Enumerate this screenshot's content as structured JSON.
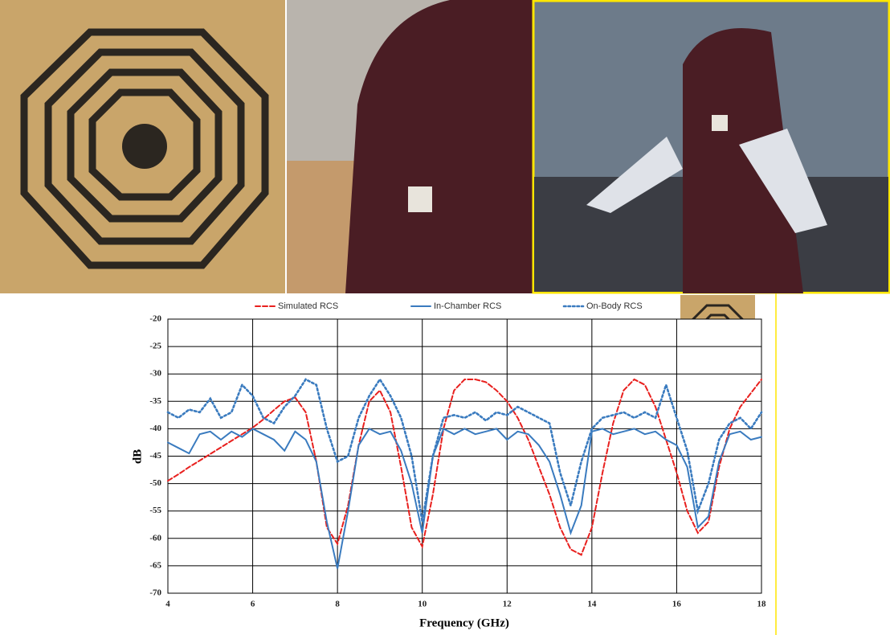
{
  "chart_data": {
    "type": "line",
    "x_label": "Frequency (GHz)",
    "y_label": "dB",
    "x": [
      4,
      4.25,
      4.5,
      4.75,
      5,
      5.25,
      5.5,
      5.75,
      6,
      6.25,
      6.5,
      6.75,
      7,
      7.25,
      7.5,
      7.75,
      8,
      8.25,
      8.5,
      8.75,
      9,
      9.25,
      9.5,
      9.75,
      10,
      10.25,
      10.5,
      10.75,
      11,
      11.25,
      11.5,
      11.75,
      12,
      12.25,
      12.5,
      12.75,
      13,
      13.25,
      13.5,
      13.75,
      14,
      14.25,
      14.5,
      14.75,
      15,
      15.25,
      15.5,
      15.75,
      16,
      16.25,
      16.5,
      16.75,
      17,
      17.25,
      17.5,
      17.75,
      18
    ],
    "series": [
      {
        "name": "Simulated RCS",
        "color": "#e8201e",
        "line_style": "dashed",
        "values": [
          -49.5,
          -48.3,
          -47,
          -45.8,
          -44.6,
          -43.4,
          -42.2,
          -41,
          -39.8,
          -38.3,
          -36.6,
          -35,
          -34.3,
          -37,
          -46,
          -58,
          -61,
          -54,
          -43,
          -35,
          -33,
          -37,
          -47,
          -58,
          -61.5,
          -52,
          -40,
          -33,
          -31,
          -31,
          -31.5,
          -33,
          -35,
          -38,
          -42,
          -47,
          -52,
          -58,
          -62,
          -63,
          -58,
          -48,
          -39,
          -33,
          -31,
          -32,
          -36,
          -42,
          -48,
          -55,
          -59,
          -57,
          -47,
          -40,
          -36,
          -33.5,
          -31
        ]
      },
      {
        "name": "In-Chamber RCS",
        "color": "#3a7bbf",
        "line_style": "solid",
        "values": [
          -42.5,
          -43.5,
          -44.5,
          -41,
          -40.5,
          -42,
          -40.5,
          -41.5,
          -40,
          -41,
          -42,
          -44,
          -40.5,
          -42,
          -46,
          -57,
          -65.5,
          -55,
          -43,
          -40,
          -41,
          -40.5,
          -44,
          -50,
          -59,
          -45,
          -40,
          -41,
          -40,
          -41,
          -40.5,
          -40,
          -42,
          -40.5,
          -41,
          -43,
          -46,
          -52,
          -59,
          -54,
          -40.5,
          -40,
          -41,
          -40.5,
          -40,
          -41,
          -40.5,
          -42,
          -43,
          -47,
          -58,
          -56,
          -46,
          -41,
          -40.5,
          -42,
          -41.5
        ]
      },
      {
        "name": "On-Body RCS",
        "color": "#3a7bbf",
        "line_style": "dotted",
        "values": [
          -37,
          -38,
          -36.5,
          -37,
          -34.5,
          -38,
          -37,
          -32,
          -34,
          -38,
          -39,
          -36,
          -34,
          -31,
          -32,
          -40,
          -46,
          -45,
          -38,
          -34,
          -31,
          -34,
          -38,
          -45,
          -57,
          -45,
          -38,
          -37.5,
          -38,
          -37,
          -38.5,
          -37,
          -37.5,
          -36,
          -37,
          -38,
          -39,
          -48,
          -54,
          -46,
          -40,
          -38,
          -37.5,
          -37,
          -38,
          -37,
          -38,
          -32,
          -38,
          -44,
          -55,
          -50,
          -42,
          -39,
          -38,
          -40,
          -37
        ]
      }
    ],
    "xlim": [
      4,
      18
    ],
    "xticks": [
      4,
      6,
      8,
      10,
      12,
      14,
      16,
      18
    ],
    "ylim": [
      -70,
      -20
    ],
    "yticks": [
      -20,
      -25,
      -30,
      -35,
      -40,
      -45,
      -50,
      -55,
      -60,
      -65,
      -70
    ],
    "grid": true,
    "legend": "top"
  }
}
